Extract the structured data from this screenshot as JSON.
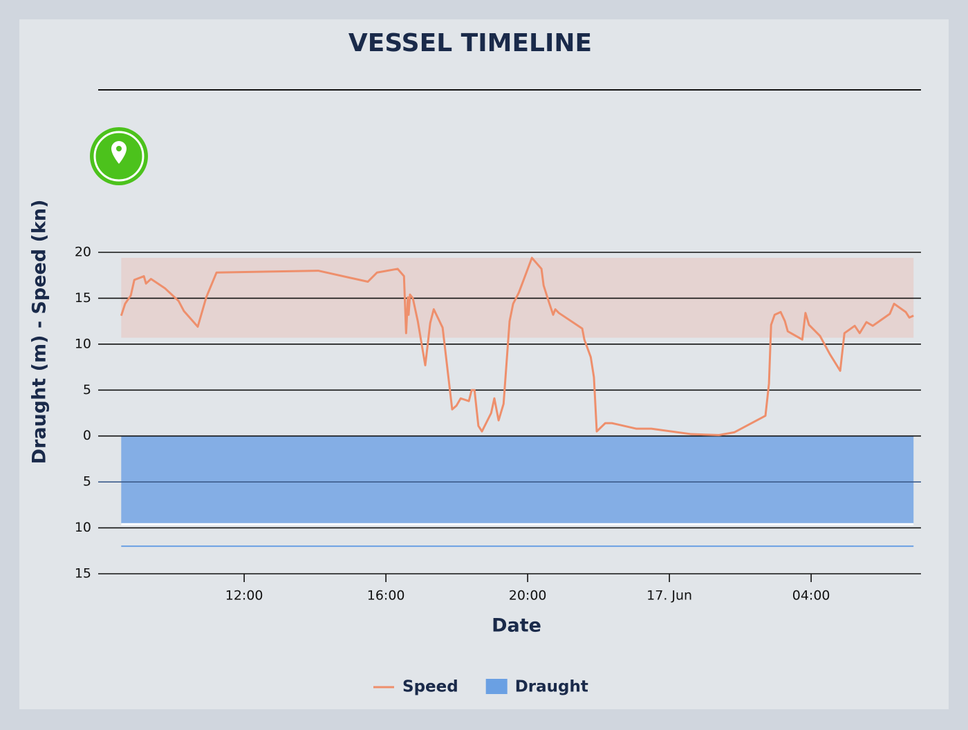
{
  "chart_data": {
    "type": "line",
    "title": "VESSEL TIMELINE",
    "ylabel": "Draught (m) - Speed (kn)",
    "xlabel": "Date",
    "xlim": [
      7.88,
      31.1
    ],
    "xticks": [
      {
        "value": 12,
        "label": "12:00"
      },
      {
        "value": 16,
        "label": "16:00"
      },
      {
        "value": 20,
        "label": "20:00"
      },
      {
        "value": 24,
        "label": "17. Jun"
      },
      {
        "value": 28,
        "label": "04:00"
      }
    ],
    "ylim": [
      -15,
      20
    ],
    "yticks": [
      20,
      15,
      10,
      5,
      0,
      {
        "value": -5,
        "label": "5"
      },
      {
        "value": -10,
        "label": "10"
      },
      {
        "value": -15,
        "label": "15"
      }
    ],
    "grid": true,
    "speed_band": [
      10.7,
      19.4
    ],
    "draught_limit": -12,
    "series": [
      {
        "name": "Speed",
        "type": "line",
        "color": "#ee8f6c",
        "x": [
          8.53,
          8.64,
          8.8,
          8.9,
          9.17,
          9.23,
          9.37,
          9.76,
          10.15,
          10.3,
          10.69,
          10.93,
          11.22,
          14.09,
          15.49,
          15.75,
          16.33,
          16.51,
          16.57,
          16.62,
          16.64,
          16.68,
          16.76,
          16.9,
          17.11,
          17.25,
          17.35,
          17.6,
          17.87,
          17.99,
          18.11,
          18.34,
          18.42,
          18.5,
          18.61,
          18.71,
          18.97,
          19.06,
          19.18,
          19.32,
          19.49,
          19.59,
          19.75,
          20.12,
          20.39,
          20.45,
          20.59,
          20.72,
          20.78,
          20.88,
          21.54,
          21.6,
          21.78,
          21.87,
          21.95,
          22.19,
          22.38,
          23.06,
          23.49,
          24.62,
          25.4,
          25.83,
          26.71,
          26.81,
          26.87,
          26.97,
          27.14,
          27.26,
          27.34,
          27.75,
          27.84,
          27.94,
          28.25,
          28.53,
          28.82,
          28.94,
          29.23,
          29.37,
          29.56,
          29.74,
          30.22,
          30.34,
          30.67,
          30.77,
          30.89
        ],
        "values": [
          13.1,
          14.4,
          15.3,
          17.0,
          17.4,
          16.6,
          17.1,
          16.1,
          14.7,
          13.6,
          11.9,
          15.1,
          17.8,
          18.0,
          16.8,
          17.8,
          18.2,
          17.4,
          11.2,
          15.1,
          13.2,
          15.4,
          15.0,
          12.5,
          7.7,
          12.3,
          13.8,
          11.8,
          2.9,
          3.3,
          4.1,
          3.8,
          5.0,
          5.0,
          1.1,
          0.5,
          2.5,
          4.1,
          1.7,
          3.5,
          12.5,
          14.4,
          15.6,
          19.4,
          18.2,
          16.4,
          14.7,
          13.2,
          13.8,
          13.4,
          11.7,
          10.5,
          8.6,
          6.4,
          0.5,
          1.4,
          1.4,
          0.8,
          0.8,
          0.2,
          0.1,
          0.4,
          2.2,
          5.7,
          12.1,
          13.2,
          13.5,
          12.5,
          11.4,
          10.5,
          13.4,
          12.1,
          10.9,
          8.9,
          7.1,
          11.2,
          12.0,
          11.2,
          12.4,
          12.0,
          13.3,
          14.4,
          13.5,
          12.9,
          13.1
        ]
      },
      {
        "name": "Draught",
        "type": "area",
        "color": "#84aee5",
        "x": [
          8.53,
          30.89
        ],
        "values": [
          -9.6,
          -9.6
        ]
      }
    ]
  }
}
